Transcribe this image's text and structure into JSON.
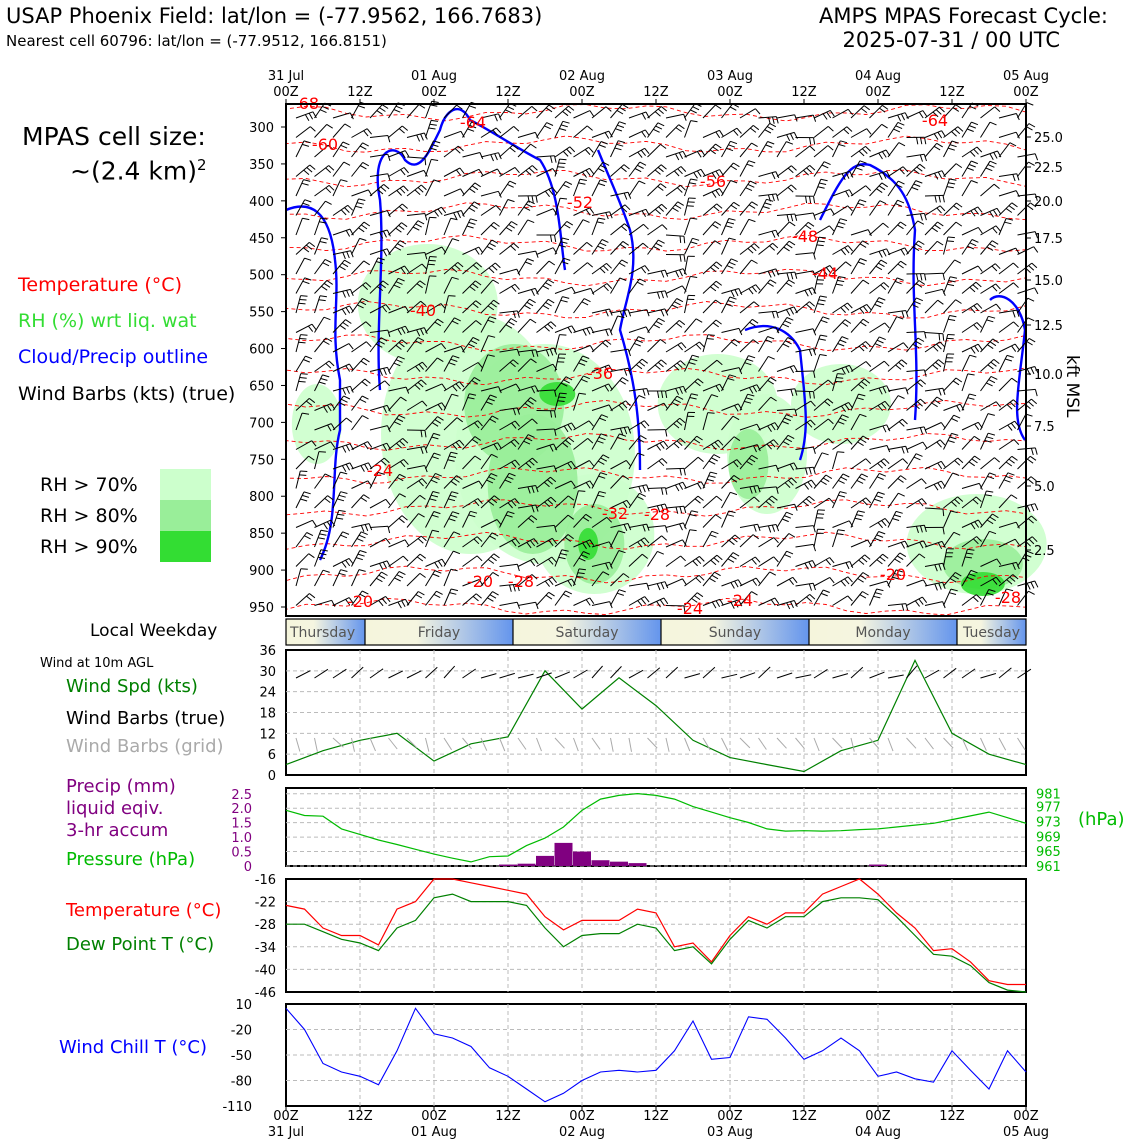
{
  "header": {
    "title": "USAP Phoenix Field: lat/lon = (-77.9562, 166.7683)",
    "subtitle": "Nearest cell 60796: lat/lon = (-77.9512, 166.8151)",
    "cycle_line1": "AMPS MPAS Forecast Cycle:",
    "cycle_line2": "2025-07-31 / 00 UTC"
  },
  "cell_size": {
    "line1": "MPAS cell size:",
    "line2": "~(2.4 km)",
    "exponent": "2"
  },
  "legend_main": {
    "temperature": "Temperature (°C)",
    "rh": "RH (%) wrt liq. wat",
    "cloud": "Cloud/Precip outline",
    "wind": "Wind Barbs (kts) (true)",
    "rh70": "RH > 70%",
    "rh80": "RH > 80%",
    "rh90": "RH > 90%"
  },
  "colors": {
    "temperature": "#ff0000",
    "rh_label": "#33dd33",
    "cloud": "#0000ff",
    "rh70": "#ccffcc",
    "rh80": "#99ee99",
    "rh90": "#33dd33",
    "wind_speed": "#008000",
    "grid_barbs": "#aaaaaa",
    "precip": "#800080",
    "pressure": "#00bb00",
    "dew": "#008000",
    "windchill": "#0000ff"
  },
  "time_axis": {
    "top_row1": [
      "31 Jul",
      "",
      "01 Aug",
      "",
      "02 Aug",
      "",
      "03 Aug",
      "",
      "04 Aug",
      "",
      "05 Aug"
    ],
    "top_row2": [
      "00Z",
      "12Z",
      "00Z",
      "12Z",
      "00Z",
      "12Z",
      "00Z",
      "12Z",
      "00Z",
      "12Z",
      "00Z"
    ],
    "bottom_row1": [
      "00Z",
      "12Z",
      "00Z",
      "12Z",
      "00Z",
      "12Z",
      "00Z",
      "12Z",
      "00Z",
      "12Z",
      "00Z"
    ],
    "bottom_row2": [
      "31 Jul",
      "",
      "01 Aug",
      "",
      "02 Aug",
      "",
      "03 Aug",
      "",
      "04 Aug",
      "",
      "05 Aug"
    ]
  },
  "weekday": {
    "label": "Local Weekday",
    "days": [
      "Thursday",
      "Friday",
      "Saturday",
      "Sunday",
      "Monday",
      "Tuesday"
    ]
  },
  "cross_section": {
    "pressure_ticks": [
      "300",
      "350",
      "400",
      "450",
      "500",
      "550",
      "600",
      "650",
      "700",
      "750",
      "800",
      "850",
      "900",
      "950"
    ],
    "height_ticks": [
      "25.0",
      "22.5",
      "20.0",
      "17.5",
      "15.0",
      "12.5",
      "10.0",
      "7.5",
      "5.0",
      "2.5"
    ],
    "height_label": "kft MSL",
    "contour_labels": [
      "-68",
      "-64",
      "-60",
      "-52",
      "-56",
      "-64",
      "-48",
      "-44",
      "-40",
      "-36",
      "-24",
      "-32",
      "-28",
      "-20",
      "-28",
      "-20",
      "-24",
      "-20",
      "-24",
      "-28"
    ]
  },
  "panel_wind": {
    "title": "Wind at 10m AGL",
    "speed_label": "Wind Spd (kts)",
    "barbs_true": "Wind Barbs (true)",
    "barbs_grid": "Wind Barbs (grid)",
    "yticks": [
      "36",
      "30",
      "24",
      "18",
      "12",
      "6",
      "0"
    ]
  },
  "panel_precip": {
    "precip_line1": "Precip (mm)",
    "precip_line2": "liquid eqiv.",
    "precip_line3": "3-hr accum",
    "pressure_label": "Pressure (hPa)",
    "unit": "(hPa)",
    "left_ticks": [
      "2.5",
      "2.0",
      "1.5",
      "1.0",
      "0.5",
      "0"
    ],
    "right_ticks": [
      "981",
      "977",
      "973",
      "969",
      "965",
      "961"
    ]
  },
  "panel_temp": {
    "temp_label": "Temperature (°C)",
    "dew_label": "Dew Point T (°C)",
    "yticks": [
      "-16",
      "-22",
      "-28",
      "-34",
      "-40",
      "-46"
    ]
  },
  "panel_chill": {
    "label": "Wind Chill T (°C)",
    "yticks": [
      "10",
      "-20",
      "-50",
      "-80",
      "-110"
    ]
  },
  "chart_data": [
    {
      "type": "line",
      "name": "wind-speed",
      "x_hours": [
        0,
        6,
        12,
        18,
        24,
        30,
        36,
        42,
        48,
        54,
        60,
        66,
        72,
        78,
        84,
        90,
        96,
        102,
        108,
        114,
        120
      ],
      "values": [
        3,
        7,
        10,
        12,
        4,
        9,
        11,
        30,
        19,
        28,
        20,
        10,
        5,
        3,
        1,
        7,
        10,
        33,
        12,
        6,
        3
      ],
      "ylim": [
        0,
        36
      ]
    },
    {
      "type": "line",
      "name": "pressure",
      "x_hours": [
        0,
        3,
        6,
        9,
        12,
        15,
        18,
        21,
        24,
        27,
        30,
        33,
        36,
        39,
        42,
        45,
        48,
        51,
        54,
        57,
        60,
        63,
        66,
        69,
        72,
        75,
        78,
        81,
        84,
        87,
        90,
        93,
        96,
        99,
        102,
        105,
        108,
        111,
        114,
        117,
        120
      ],
      "values": [
        976,
        974.6,
        974.4,
        971,
        969.5,
        968,
        966.8,
        965.5,
        964.2,
        963.1,
        962.1,
        963.5,
        963.7,
        966.5,
        968.5,
        971.5,
        976,
        979,
        980,
        980.5,
        980,
        979,
        977,
        975.5,
        974,
        972.7,
        971,
        970.4,
        970.5,
        970.4,
        970.5,
        970.8,
        971,
        971.5,
        972,
        972.5,
        973.5,
        974.5,
        975.5,
        974,
        972.5
      ],
      "ylim": [
        961,
        982
      ]
    },
    {
      "type": "bar",
      "name": "precip",
      "x_hours": [
        36,
        39,
        42,
        45,
        48,
        51,
        54,
        57,
        96
      ],
      "values": [
        0.05,
        0.08,
        0.35,
        0.8,
        0.5,
        0.2,
        0.15,
        0.1,
        0.05
      ],
      "ylim": [
        0,
        2.5
      ]
    },
    {
      "type": "line",
      "name": "temperature-dewpoint",
      "series": [
        {
          "name": "Temperature (°C)",
          "x_hours": [
            0,
            3,
            6,
            9,
            12,
            15,
            18,
            21,
            24,
            27,
            30,
            33,
            36,
            39,
            42,
            45,
            48,
            51,
            54,
            57,
            60,
            63,
            66,
            69,
            72,
            75,
            78,
            81,
            84,
            87,
            90,
            93,
            96,
            99,
            102,
            105,
            108,
            111,
            114,
            117,
            120
          ],
          "values": [
            -23,
            -24,
            -29,
            -31,
            -31,
            -33.5,
            -24,
            -22,
            -16,
            -16,
            -17,
            -18,
            -19,
            -20,
            -26,
            -29.5,
            -27,
            -27,
            -27,
            -24,
            -25,
            -34,
            -33,
            -38,
            -31,
            -26,
            -28,
            -25,
            -25,
            -20,
            -18,
            -16,
            -20,
            -25,
            -29,
            -35,
            -34.5,
            -38,
            -43,
            -44,
            -44
          ]
        },
        {
          "name": "Dew Point T (°C)",
          "x_hours": [
            0,
            3,
            6,
            9,
            12,
            15,
            18,
            21,
            24,
            27,
            30,
            33,
            36,
            39,
            42,
            45,
            48,
            51,
            54,
            57,
            60,
            63,
            66,
            69,
            72,
            75,
            78,
            81,
            84,
            87,
            90,
            93,
            96,
            99,
            102,
            105,
            108,
            111,
            114,
            117,
            120
          ],
          "values": [
            -28,
            -28,
            -30,
            -32,
            -33,
            -35,
            -29,
            -27,
            -21,
            -20,
            -22,
            -22,
            -22,
            -23,
            -29,
            -34,
            -31,
            -30.5,
            -30.5,
            -28,
            -29,
            -35,
            -34,
            -38.5,
            -32,
            -27,
            -29,
            -26,
            -26,
            -22,
            -21,
            -21,
            -21.5,
            -26,
            -31,
            -36,
            -36.5,
            -39,
            -43.5,
            -45.5,
            -46
          ]
        }
      ],
      "ylim": [
        -46,
        -16
      ]
    },
    {
      "type": "line",
      "name": "wind-chill",
      "x_hours": [
        0,
        3,
        6,
        9,
        12,
        15,
        18,
        21,
        24,
        27,
        30,
        33,
        36,
        39,
        42,
        45,
        48,
        51,
        54,
        57,
        60,
        63,
        66,
        69,
        72,
        75,
        78,
        81,
        84,
        87,
        90,
        93,
        96,
        99,
        102,
        105,
        108,
        111,
        114,
        117,
        120
      ],
      "values": [
        5,
        -20,
        -60,
        -70,
        -75,
        -85,
        -45,
        5,
        -25,
        -30,
        -40,
        -65,
        -75,
        -90,
        -105,
        -95,
        -80,
        -70,
        -68,
        -70,
        -68,
        -45,
        -10,
        -55,
        -53,
        -5,
        -8,
        -30,
        -55,
        -45,
        -30,
        -45,
        -75,
        -70,
        -78,
        -82,
        -45,
        -68,
        -90,
        -45,
        -70
      ],
      "ylim": [
        -110,
        10
      ]
    }
  ]
}
